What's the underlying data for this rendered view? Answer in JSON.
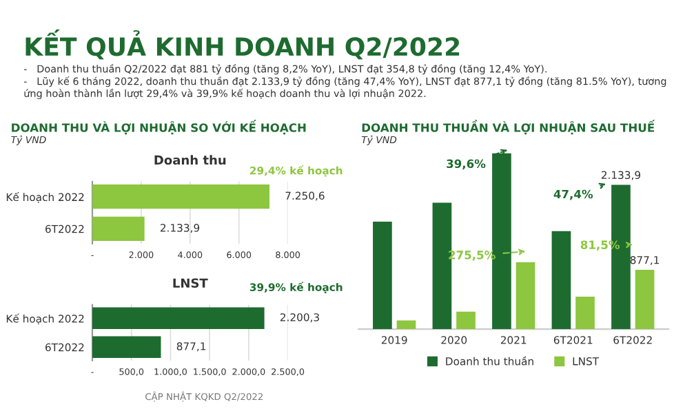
{
  "chart_data": [
    {
      "type": "bar",
      "orientation": "horizontal",
      "title": "Doanh thu",
      "categories": [
        "Kế hoạch 2022",
        "6T2022"
      ],
      "values": [
        7250.6,
        2133.9
      ],
      "color": "#8dc63f",
      "value_labels": [
        "7.250,6",
        "2.133,9"
      ],
      "xlim": [
        0,
        8000
      ],
      "xticks": [
        {
          "value": 0,
          "label": "-"
        },
        {
          "value": 2000,
          "label": "2.000"
        },
        {
          "value": 4000,
          "label": "4.000"
        },
        {
          "value": 6000,
          "label": "6.000"
        },
        {
          "value": 8000,
          "label": "8.000"
        }
      ],
      "grid": "x",
      "annotations": [
        "KẾT QUẢ KINH DOANH Q2/2022",
        "-   Doanh thu thuần Q2/2022 đạt 881 tỷ đồng (tăng 8,2% YoY), LNST đạt 354,8 tỷ đồng (tăng 12,4% YoY).",
        "-   Lũy kế 6 tháng 2022, doanh thu thuần đạt 2.133,9 tỷ đồng (tăng 47,4% YoY), LNST đạt 877,1 tỷ đồng (tăng 81.5% YoY), tương ứng hoàn thành lần lượt 29,4% và 39,9% kế hoạch doanh thu và lợi nhuận 2022.",
        "DOANH THU VÀ LỢI NHUẬN SO VỚI KẾ HOẠCH",
        "Tỷ VND",
        "29,4% kế hoạch"
      ]
    },
    {
      "type": "bar",
      "orientation": "horizontal",
      "title": "LNST",
      "categories": [
        "Kế hoạch 2022",
        "6T2022"
      ],
      "values": [
        2200.3,
        877.1
      ],
      "color": "#1e6b30",
      "value_labels": [
        "2.200,3",
        "877,1"
      ],
      "xlim": [
        0,
        2500
      ],
      "xticks": [
        {
          "value": 0,
          "label": "-"
        },
        {
          "value": 500,
          "label": "500,0"
        },
        {
          "value": 1000,
          "label": "1.000,0"
        },
        {
          "value": 1500,
          "label": "1.500,0"
        },
        {
          "value": 2000,
          "label": "2.000,0"
        },
        {
          "value": 2500,
          "label": "2.500,0"
        }
      ],
      "grid": "x",
      "annotations": [
        "39,9% kế hoạch",
        "CẬP NHẬT KQKD Q2/2022"
      ]
    },
    {
      "type": "bar",
      "title": "DOANH THU THUẦN VÀ LỢI NHUẬN SAU THUẾ",
      "subtitle": "Tỷ VND",
      "categories": [
        "2019",
        "2020",
        "2021",
        "6T2021",
        "6T2022"
      ],
      "tick_labels": "x",
      "legend": "bottom",
      "series": [
        {
          "name": "Doanh thu thuần",
          "color": "#1e6b30",
          "values": [
            1590,
            1870,
            2600,
            1450,
            2133.9
          ],
          "value_labels": [
            null,
            null,
            null,
            null,
            "2.133,9"
          ]
        },
        {
          "name": "LNST",
          "color": "#8dc63f",
          "values": [
            130,
            260,
            990,
            480,
            877.1
          ],
          "value_labels": [
            null,
            null,
            null,
            null,
            "877,1"
          ]
        }
      ],
      "annotations": [
        "39,6%",
        "47,4%",
        "275,5%",
        "81,5%"
      ]
    }
  ]
}
